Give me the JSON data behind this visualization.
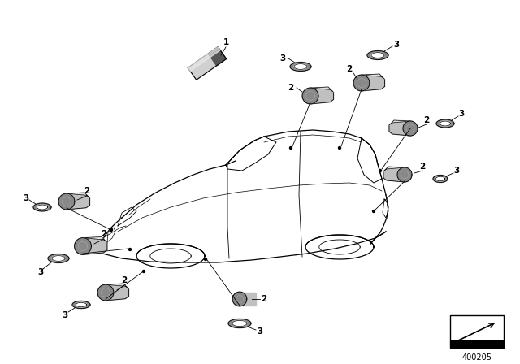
{
  "background_color": "#ffffff",
  "fig_width": 6.4,
  "fig_height": 4.48,
  "dpi": 100,
  "diagram_number": "400205",
  "sensor_fill": "#c0c0c0",
  "sensor_dark": "#888888",
  "sensor_light": "#e0e0e0",
  "ring_fill": "#999999",
  "cu_light": "#d0d0d0",
  "cu_dark": "#555555",
  "line_color": "#000000",
  "label_fontsize": 7.5
}
